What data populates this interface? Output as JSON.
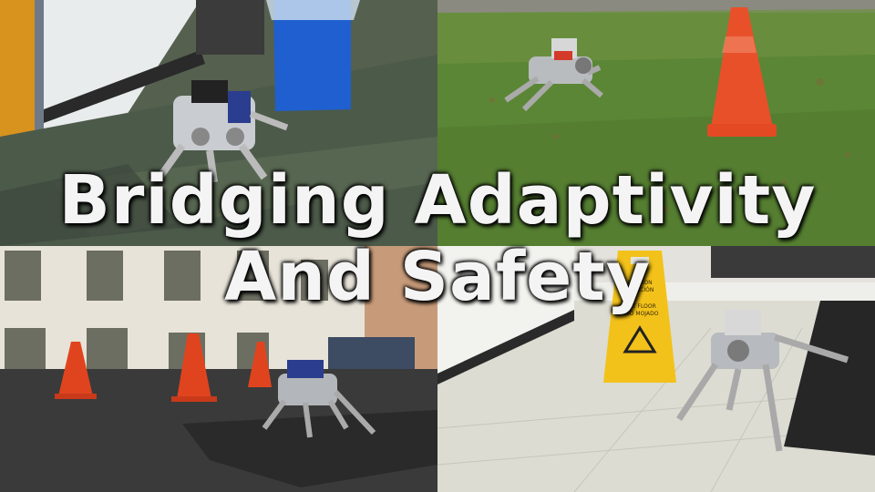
{
  "title": {
    "line1": "Bridging Adaptivity",
    "line2": "And Safety"
  },
  "panels": [
    {
      "id": "indoor-carpet",
      "scene": "robot dog on office carpet near blue bin"
    },
    {
      "id": "grass-cone",
      "scene": "robot dog on grass near orange cone"
    },
    {
      "id": "courtyard-cones",
      "scene": "robot dog on mat in courtyard with cones"
    },
    {
      "id": "wet-floor",
      "scene": "robot dog near wet floor sign and doormat"
    }
  ],
  "wet_floor_sign": {
    "line1": "CAUTION",
    "line2": "ATENCIÓN",
    "line3": "WET FLOOR",
    "line4": "PISO MOJADO"
  },
  "colors": {
    "carpet": "#4a5a4a",
    "grass": "#5e8a38",
    "cone": "#e8502a",
    "sign": "#f2c21a",
    "bin": "#1f5fcf"
  }
}
